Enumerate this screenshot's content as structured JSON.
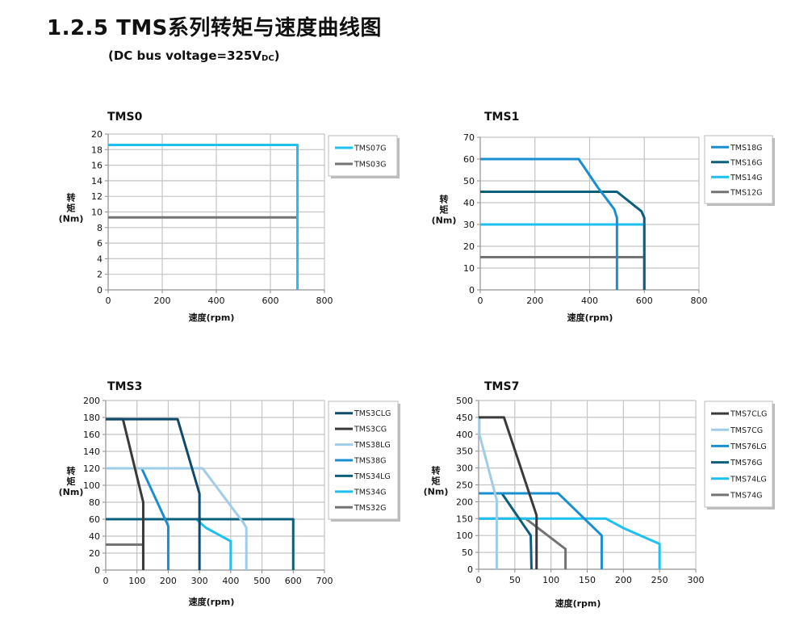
{
  "header": {
    "title": "1.2.5 TMS系列转矩与速度曲线图",
    "subtitle_main": "(DC bus voltage=325V",
    "subtitle_sub": "DC",
    "subtitle_end": ")"
  },
  "chart_data": [
    {
      "type": "line",
      "title": "TMS0",
      "xlabel": "速度(rpm)",
      "ylabel_lines": [
        "转",
        "矩",
        "(Nm)"
      ],
      "xlim": [
        0,
        800
      ],
      "xticks": [
        0,
        200,
        400,
        600,
        800
      ],
      "ylim": [
        0,
        20
      ],
      "yticks": [
        0,
        2,
        4,
        6,
        8,
        10,
        12,
        14,
        16,
        18,
        20
      ],
      "grid": true,
      "legend_placement": "right",
      "series": [
        {
          "name": "TMS07G",
          "color": "#1ec0ef",
          "points": [
            [
              0,
              18.6
            ],
            [
              700,
              18.6
            ],
            [
              700,
              0
            ]
          ]
        },
        {
          "name": "TMS03G",
          "color": "#737373",
          "points": [
            [
              0,
              9.3
            ],
            [
              700,
              9.3
            ],
            [
              700,
              0
            ]
          ]
        }
      ]
    },
    {
      "type": "line",
      "title": "TMS1",
      "xlabel": "速度(rpm)",
      "ylabel_lines": [
        "转",
        "矩",
        "(Nm)"
      ],
      "xlim": [
        0,
        800
      ],
      "xticks": [
        0,
        200,
        400,
        600,
        800
      ],
      "ylim": [
        0,
        70
      ],
      "yticks": [
        0,
        10,
        20,
        30,
        40,
        50,
        60,
        70
      ],
      "grid": true,
      "legend_placement": "right",
      "series": [
        {
          "name": "TMS18G",
          "color": "#1a8fd0",
          "points": [
            [
              0,
              60
            ],
            [
              360,
              60
            ],
            [
              430,
              47
            ],
            [
              490,
              37
            ],
            [
              500,
              33
            ],
            [
              500,
              0
            ]
          ]
        },
        {
          "name": "TMS16G",
          "color": "#0b5f7a",
          "points": [
            [
              0,
              45
            ],
            [
              500,
              45
            ],
            [
              590,
              36
            ],
            [
              600,
              33
            ],
            [
              600,
              0
            ]
          ]
        },
        {
          "name": "TMS14G",
          "color": "#1ec0ef",
          "points": [
            [
              0,
              30
            ],
            [
              600,
              30
            ],
            [
              600,
              15
            ]
          ]
        },
        {
          "name": "TMS12G",
          "color": "#737373",
          "points": [
            [
              0,
              15
            ],
            [
              600,
              15
            ],
            [
              600,
              0
            ]
          ]
        }
      ]
    },
    {
      "type": "line",
      "title": "TMS3",
      "xlabel": "速度(rpm)",
      "ylabel_lines": [
        "转",
        "矩",
        "(Nm)"
      ],
      "xlim": [
        0,
        700
      ],
      "xticks": [
        0,
        100,
        200,
        300,
        400,
        500,
        600,
        700
      ],
      "ylim": [
        0,
        200
      ],
      "yticks": [
        0,
        20,
        40,
        60,
        80,
        100,
        120,
        140,
        160,
        180,
        200
      ],
      "grid": true,
      "legend_placement": "right",
      "series": [
        {
          "name": "TMS3CLG",
          "color": "#0d4a6b",
          "points": [
            [
              0,
              178
            ],
            [
              230,
              178
            ],
            [
              300,
              90
            ],
            [
              300,
              0
            ]
          ]
        },
        {
          "name": "TMS3CG",
          "color": "#3a3a3a",
          "points": [
            [
              0,
              178
            ],
            [
              55,
              178
            ],
            [
              120,
              80
            ],
            [
              120,
              0
            ]
          ]
        },
        {
          "name": "TMS38LG",
          "color": "#9fcde8",
          "points": [
            [
              0,
              120
            ],
            [
              310,
              120
            ],
            [
              440,
              56
            ],
            [
              450,
              50
            ],
            [
              450,
              0
            ]
          ]
        },
        {
          "name": "TMS38G",
          "color": "#1a8fd0",
          "points": [
            [
              0,
              120
            ],
            [
              115,
              120
            ],
            [
              190,
              60
            ],
            [
              200,
              52
            ],
            [
              200,
              0
            ]
          ]
        },
        {
          "name": "TMS34LG",
          "color": "#0b5f7a",
          "points": [
            [
              0,
              60
            ],
            [
              600,
              60
            ],
            [
              600,
              0
            ]
          ]
        },
        {
          "name": "TMS34G",
          "color": "#1ec0ef",
          "points": [
            [
              0,
              60
            ],
            [
              290,
              60
            ],
            [
              320,
              50
            ],
            [
              400,
              34
            ],
            [
              400,
              0
            ]
          ]
        },
        {
          "name": "TMS32G",
          "color": "#737373",
          "points": [
            [
              0,
              30
            ],
            [
              120,
              30
            ],
            [
              120,
              0
            ]
          ]
        }
      ]
    },
    {
      "type": "line",
      "title": "TMS7",
      "xlabel": "速度(rpm)",
      "ylabel_lines": [
        "转",
        "矩",
        "(Nm)"
      ],
      "xlim": [
        0,
        300
      ],
      "xticks": [
        0,
        50,
        100,
        150,
        200,
        250,
        300
      ],
      "ylim": [
        0,
        500
      ],
      "yticks": [
        0,
        50,
        100,
        150,
        200,
        250,
        300,
        350,
        400,
        450,
        500
      ],
      "grid": true,
      "legend_placement": "right",
      "series": [
        {
          "name": "TMS7CLG",
          "color": "#3a3a3a",
          "points": [
            [
              0,
              450
            ],
            [
              35,
              450
            ],
            [
              80,
              160
            ],
            [
              80,
              0
            ]
          ]
        },
        {
          "name": "TMS7CG",
          "color": "#9fcde8",
          "points": [
            [
              1,
              450
            ],
            [
              1,
              400
            ],
            [
              25,
              205
            ],
            [
              25,
              0
            ]
          ]
        },
        {
          "name": "TMS76LG",
          "color": "#1a8fd0",
          "points": [
            [
              0,
              225
            ],
            [
              110,
              225
            ],
            [
              170,
              100
            ],
            [
              170,
              0
            ]
          ]
        },
        {
          "name": "TMS76G",
          "color": "#0b5f7a",
          "points": [
            [
              0,
              225
            ],
            [
              32,
              225
            ],
            [
              72,
              100
            ],
            [
              73,
              0
            ]
          ]
        },
        {
          "name": "TMS74LG",
          "color": "#1ec0ef",
          "points": [
            [
              0,
              150
            ],
            [
              176,
              150
            ],
            [
              200,
              122
            ],
            [
              250,
              75
            ],
            [
              250,
              0
            ]
          ]
        },
        {
          "name": "TMS74G",
          "color": "#737373",
          "points": [
            [
              0,
              150
            ],
            [
              65,
              150
            ],
            [
              120,
              60
            ],
            [
              120,
              0
            ]
          ]
        }
      ]
    }
  ]
}
